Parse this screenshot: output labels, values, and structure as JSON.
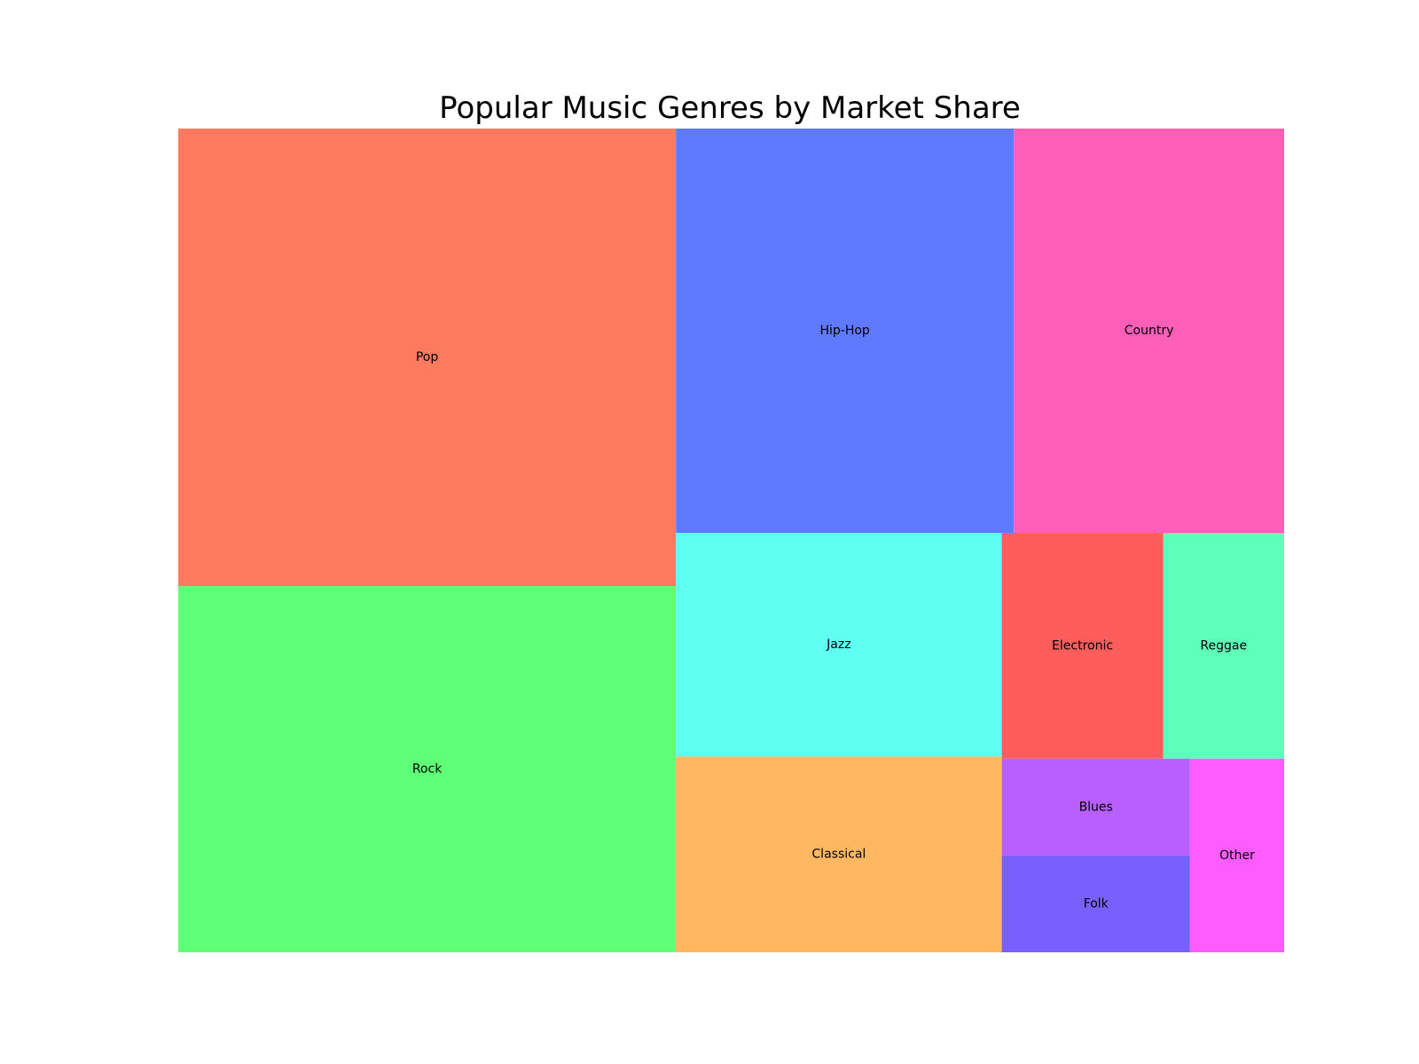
{
  "chart_data": {
    "type": "treemap",
    "title": "Popular Music Genres by Market Share",
    "xlabel": "",
    "ylabel": "",
    "grid": false,
    "axes_visible": false,
    "legend": "none",
    "items": [
      {
        "label": "Pop",
        "value": 25,
        "color": "#ff7a5f"
      },
      {
        "label": "Rock",
        "value": 20,
        "color": "#5fff77"
      },
      {
        "label": "Hip-Hop",
        "value": 15,
        "color": "#5f7aff"
      },
      {
        "label": "Country",
        "value": 12,
        "color": "#ff5fb8"
      },
      {
        "label": "Jazz",
        "value": 8,
        "color": "#5ffff2"
      },
      {
        "label": "Classical",
        "value": 7,
        "color": "#ffb85f"
      },
      {
        "label": "Electronic",
        "value": 4,
        "color": "#ff5c5c"
      },
      {
        "label": "Reggae",
        "value": 3,
        "color": "#5dffb9"
      },
      {
        "label": "Blues",
        "value": 2,
        "color": "#b85fff"
      },
      {
        "label": "Folk",
        "value": 2,
        "color": "#7a5fff"
      },
      {
        "label": "Other",
        "value": 2,
        "color": "#ff5cff"
      }
    ]
  }
}
